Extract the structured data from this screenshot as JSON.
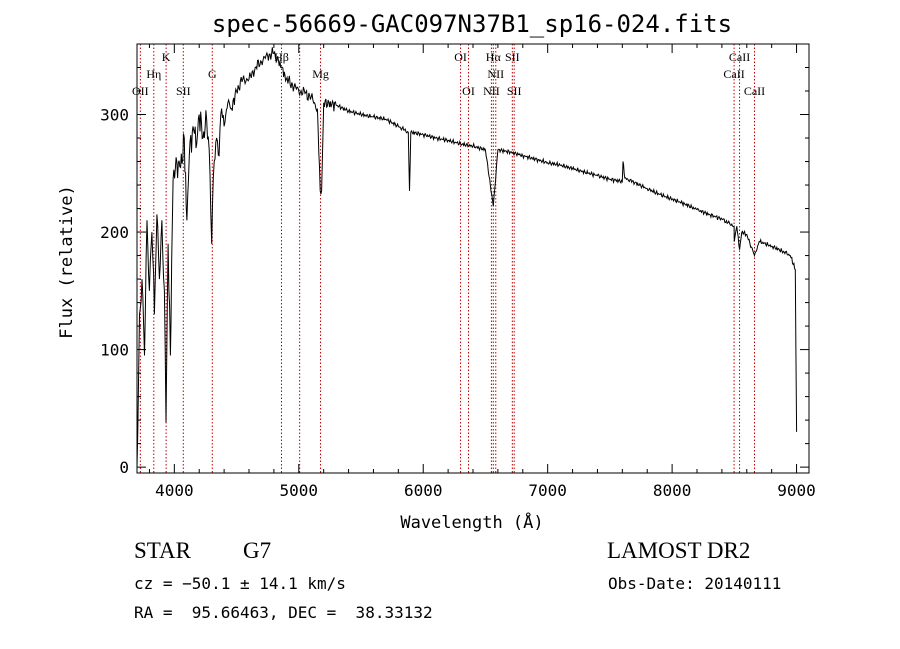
{
  "chart_data": {
    "type": "line",
    "title": "spec-56669-GAC097N37B1_sp16-024.fits",
    "xlabel": "Wavelength (Å)",
    "ylabel": "Flux (relative)",
    "xlim": [
      3700,
      9100
    ],
    "ylim": [
      -5,
      360
    ],
    "xticks": [
      4000,
      5000,
      6000,
      7000,
      8000,
      9000
    ],
    "xtick_labels": [
      "4000",
      "5000",
      "6000",
      "7000",
      "8000",
      "9000"
    ],
    "yticks": [
      0,
      100,
      200,
      300
    ],
    "ytick_labels": [
      "0",
      "100",
      "200",
      "300"
    ],
    "grid": false,
    "series": [
      {
        "name": "spectrum",
        "points": [
          [
            3700,
            0
          ],
          [
            3720,
            130
          ],
          [
            3740,
            160
          ],
          [
            3760,
            95
          ],
          [
            3780,
            210
          ],
          [
            3800,
            150
          ],
          [
            3820,
            200
          ],
          [
            3840,
            130
          ],
          [
            3860,
            215
          ],
          [
            3880,
            160
          ],
          [
            3900,
            210
          ],
          [
            3920,
            150
          ],
          [
            3933,
            38
          ],
          [
            3950,
            190
          ],
          [
            3968,
            95
          ],
          [
            3990,
            245
          ],
          [
            4020,
            260
          ],
          [
            4050,
            255
          ],
          [
            4080,
            280
          ],
          [
            4101,
            210
          ],
          [
            4120,
            265
          ],
          [
            4150,
            290
          ],
          [
            4180,
            275
          ],
          [
            4200,
            300
          ],
          [
            4230,
            280
          ],
          [
            4260,
            295
          ],
          [
            4280,
            270
          ],
          [
            4300,
            190
          ],
          [
            4320,
            260
          ],
          [
            4340,
            280
          ],
          [
            4360,
            265
          ],
          [
            4380,
            305
          ],
          [
            4400,
            290
          ],
          [
            4430,
            310
          ],
          [
            4460,
            305
          ],
          [
            4500,
            320
          ],
          [
            4550,
            330
          ],
          [
            4600,
            330
          ],
          [
            4650,
            340
          ],
          [
            4700,
            345
          ],
          [
            4750,
            350
          ],
          [
            4800,
            352
          ],
          [
            4861,
            340
          ],
          [
            4900,
            330
          ],
          [
            4950,
            325
          ],
          [
            5000,
            320
          ],
          [
            5050,
            318
          ],
          [
            5100,
            315
          ],
          [
            5150,
            305
          ],
          [
            5172,
            235
          ],
          [
            5183,
            235
          ],
          [
            5200,
            310
          ],
          [
            5300,
            308
          ],
          [
            5400,
            303
          ],
          [
            5500,
            300
          ],
          [
            5600,
            298
          ],
          [
            5700,
            296
          ],
          [
            5800,
            290
          ],
          [
            5880,
            285
          ],
          [
            5890,
            235
          ],
          [
            5900,
            285
          ],
          [
            6000,
            283
          ],
          [
            6100,
            280
          ],
          [
            6200,
            278
          ],
          [
            6300,
            275
          ],
          [
            6400,
            273
          ],
          [
            6500,
            270
          ],
          [
            6563,
            222
          ],
          [
            6600,
            270
          ],
          [
            6700,
            268
          ],
          [
            6800,
            265
          ],
          [
            6900,
            262
          ],
          [
            7000,
            259
          ],
          [
            7100,
            257
          ],
          [
            7200,
            254
          ],
          [
            7300,
            251
          ],
          [
            7400,
            248
          ],
          [
            7500,
            245
          ],
          [
            7600,
            243
          ],
          [
            7605,
            260
          ],
          [
            7620,
            246
          ],
          [
            7700,
            242
          ],
          [
            7800,
            237
          ],
          [
            7900,
            232
          ],
          [
            8000,
            228
          ],
          [
            8100,
            224
          ],
          [
            8200,
            219
          ],
          [
            8300,
            215
          ],
          [
            8400,
            211
          ],
          [
            8498,
            205
          ],
          [
            8500,
            192
          ],
          [
            8520,
            205
          ],
          [
            8542,
            185
          ],
          [
            8560,
            200
          ],
          [
            8600,
            198
          ],
          [
            8662,
            180
          ],
          [
            8700,
            192
          ],
          [
            8800,
            188
          ],
          [
            8900,
            183
          ],
          [
            8950,
            180
          ],
          [
            8990,
            168
          ],
          [
            9000,
            30
          ]
        ]
      }
    ],
    "line_markers": [
      {
        "label": "OII",
        "wave": 3727,
        "row": 3
      },
      {
        "label": "Hη",
        "wave": 3835,
        "row": 2
      },
      {
        "label": "K",
        "wave": 3934,
        "row": 1
      },
      {
        "label": "SII",
        "wave": 4072,
        "row": 3
      },
      {
        "label": "G",
        "wave": 4305,
        "row": 2
      },
      {
        "label": "Hβ",
        "wave": 4861,
        "row": 1
      },
      {
        "label": "",
        "wave": 5007,
        "row": 0
      },
      {
        "label": "Mg",
        "wave": 5175,
        "row": 2
      },
      {
        "label": "OI",
        "wave": 6300,
        "row": 1
      },
      {
        "label": "OI",
        "wave": 6364,
        "row": 3
      },
      {
        "label": "NII",
        "wave": 6548,
        "row": 3
      },
      {
        "label": "Hα",
        "wave": 6563,
        "row": 1
      },
      {
        "label": "NII",
        "wave": 6583,
        "row": 2
      },
      {
        "label": "SII",
        "wave": 6716,
        "row": 1
      },
      {
        "label": "SII",
        "wave": 6731,
        "row": 3
      },
      {
        "label": "CaII",
        "wave": 8498,
        "row": 2
      },
      {
        "label": "CaII",
        "wave": 8542,
        "row": 1
      },
      {
        "label": "CaII",
        "wave": 8662,
        "row": 3
      }
    ]
  },
  "info": {
    "class_label": "STAR",
    "subclass": "G7",
    "survey": "LAMOST DR2",
    "cz": "cz = −50.1 ± 14.1 km/s",
    "obs_date": "Obs-Date: 20140111",
    "coords": "RA =  95.66463, DEC =  38.33132"
  },
  "colors": {
    "spectrum": "#000000",
    "marker": "#c00000",
    "axis": "#000000"
  }
}
